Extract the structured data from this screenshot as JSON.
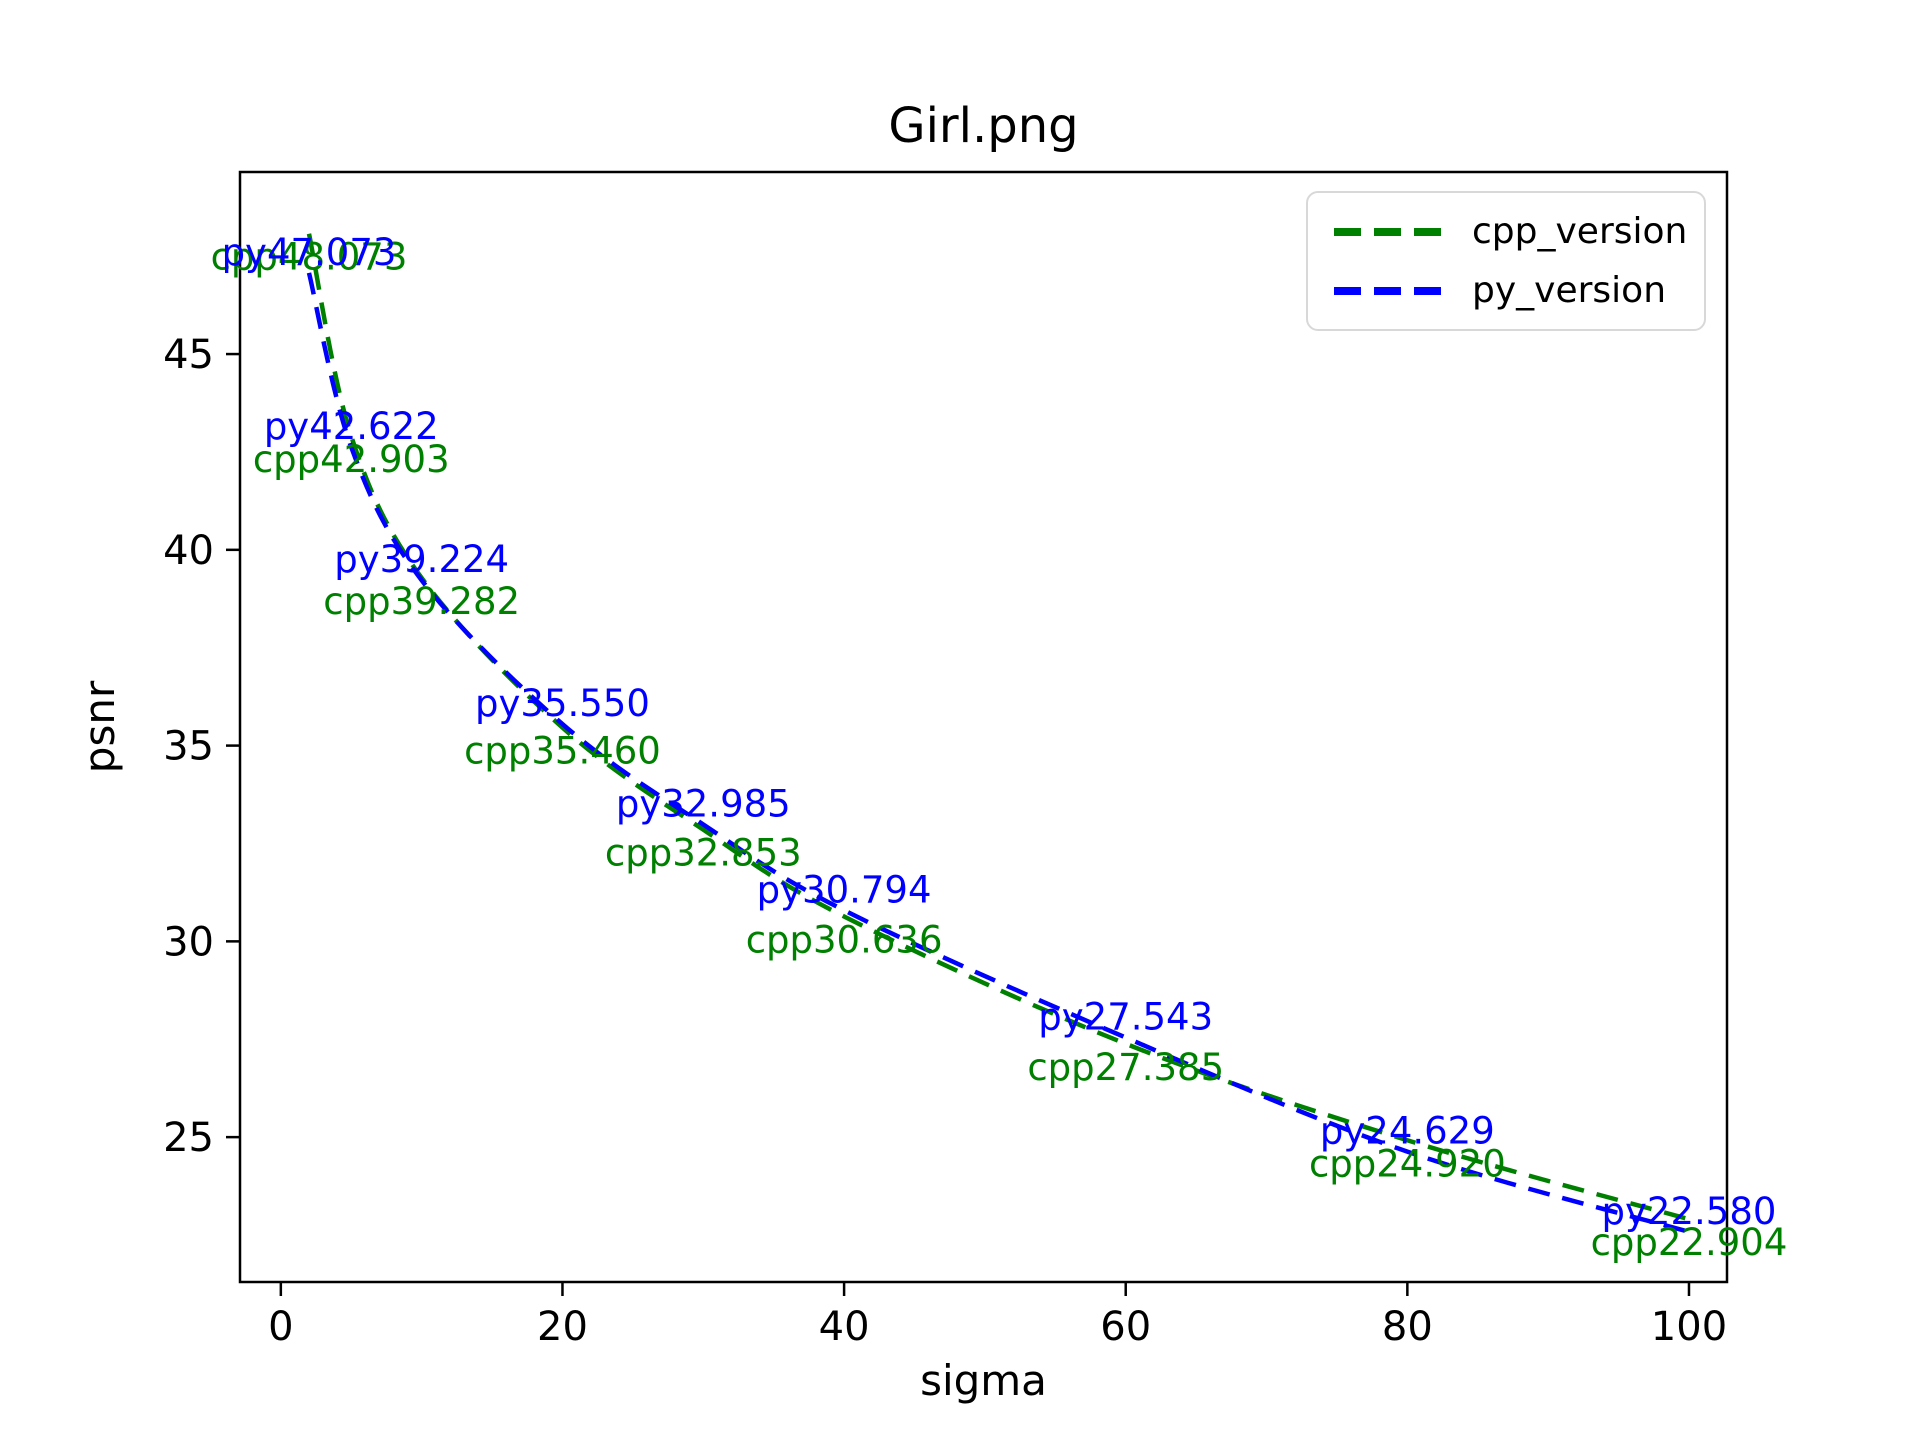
{
  "title": "Girl.png",
  "axes": {
    "xlabel": "sigma",
    "ylabel": "psnr",
    "x_ticks": [
      0,
      20,
      40,
      60,
      80,
      100
    ],
    "y_ticks": [
      25,
      30,
      35,
      40,
      45
    ],
    "spine_color": "#000000",
    "background": "#ffffff"
  },
  "legend": {
    "entries": [
      {
        "label": "cpp_version",
        "color": "#008000"
      },
      {
        "label": "py_version",
        "color": "#0000ff"
      }
    ]
  },
  "chart_data": {
    "type": "line",
    "title": "Girl.png",
    "xlabel": "sigma",
    "ylabel": "psnr",
    "x": [
      2,
      5,
      10,
      20,
      30,
      40,
      60,
      80,
      100
    ],
    "series": [
      {
        "name": "cpp_version",
        "color": "#008000",
        "linestyle": "dashed",
        "values": [
          48.073,
          42.903,
          39.282,
          35.46,
          32.853,
          30.636,
          27.385,
          24.92,
          22.904
        ],
        "point_labels": [
          "cpp48.073",
          "cpp42.903",
          "cpp39.282",
          "cpp35.460",
          "cpp32.853",
          "cpp30.636",
          "cpp27.385",
          "cpp24.920",
          "cpp22.904"
        ]
      },
      {
        "name": "py_version",
        "color": "#0000ff",
        "linestyle": "dashed",
        "values": [
          47.073,
          42.622,
          39.224,
          35.55,
          32.985,
          30.794,
          27.543,
          24.629,
          22.58
        ],
        "point_labels": [
          "py47.073",
          "py42.622",
          "py39.224",
          "py35.550",
          "py32.985",
          "py30.794",
          "py27.543",
          "py24.629",
          "py22.580"
        ]
      }
    ],
    "xlim": [
      -2.9,
      102.7
    ],
    "ylim": [
      21.3,
      49.65
    ],
    "grid": false,
    "legend_position": "upper right"
  }
}
